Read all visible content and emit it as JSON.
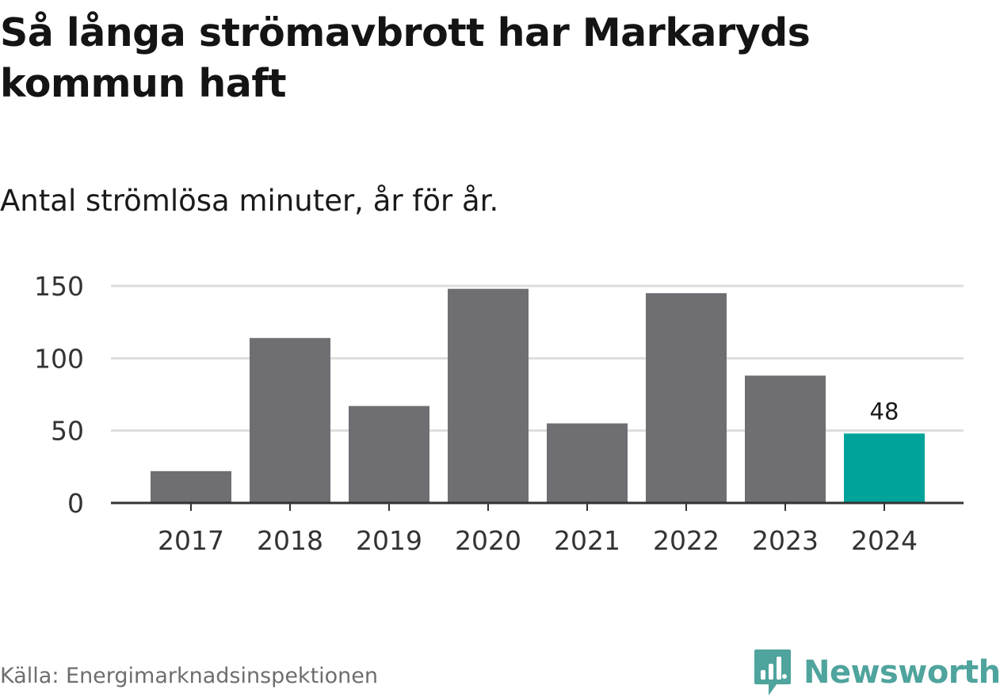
{
  "title": "Så långa strömavbrott har Markaryds kommun haft",
  "subtitle": "Antal strömlösa minuter, år för år.",
  "source": "Källa: Energimarknadsinspektionen",
  "logo": {
    "text": "Newsworthy",
    "color": "#4fa49d"
  },
  "colors": {
    "bar": "#6f6e73",
    "highlight": "#00a39a",
    "grid": "#dddddd",
    "axis": "#333333"
  },
  "chart_data": {
    "type": "bar",
    "title": "Så långa strömavbrott har Markaryds kommun haft",
    "subtitle": "Antal strömlösa minuter, år för år.",
    "xlabel": "",
    "ylabel": "",
    "categories": [
      "2017",
      "2018",
      "2019",
      "2020",
      "2021",
      "2022",
      "2023",
      "2024"
    ],
    "values": [
      22,
      114,
      67,
      148,
      55,
      145,
      88,
      48
    ],
    "highlight_index": 7,
    "data_labels": [
      {
        "index": 7,
        "text": "48"
      }
    ],
    "yticks": [
      "0",
      "50",
      "100",
      "150"
    ],
    "ylim": [
      0,
      150
    ],
    "grid": true,
    "legend": "none"
  }
}
